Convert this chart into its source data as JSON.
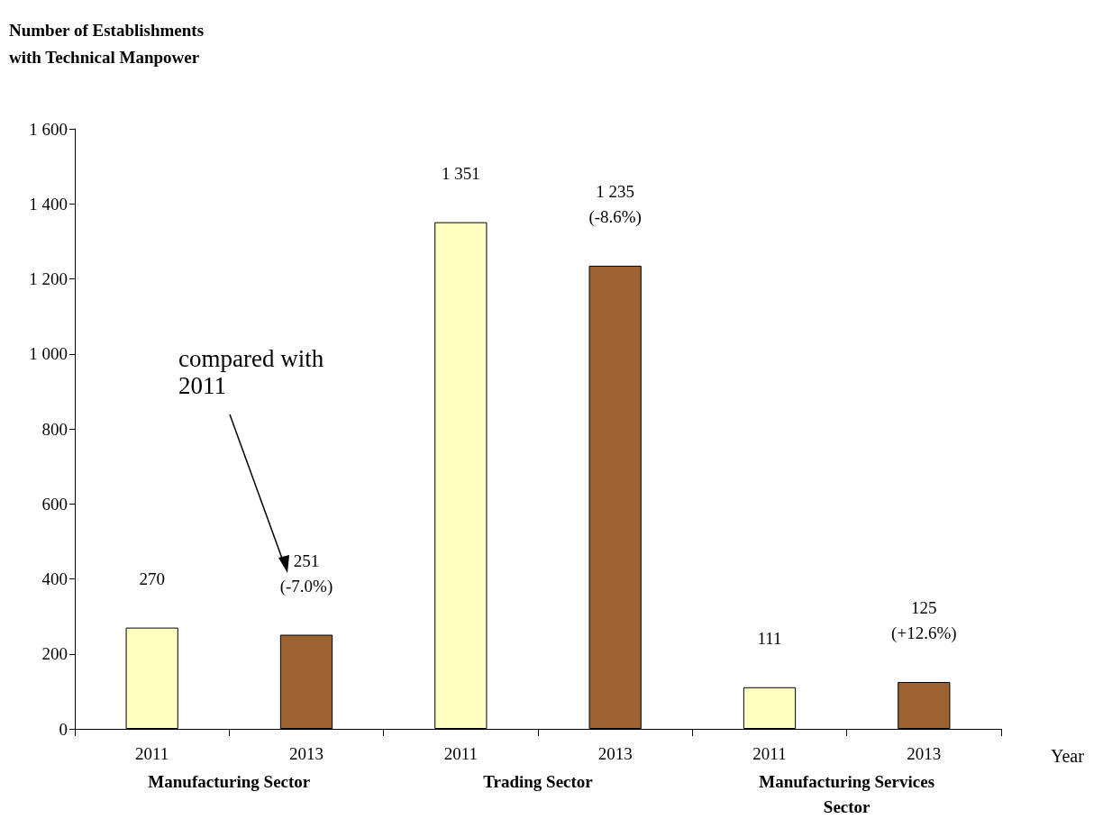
{
  "chart_data": {
    "type": "bar",
    "ylabel": "Number of Establishments\nwith Technical Manpower",
    "xlabel": "Year",
    "categories": [
      "2011",
      "2013",
      "2011",
      "2013",
      "2011",
      "2013"
    ],
    "values": [
      270,
      251,
      1351,
      1235,
      111,
      125
    ],
    "colors": [
      "#ffffc0",
      "#9c6231",
      "#ffffc0",
      "#9c6231",
      "#ffffc0",
      "#9c6231"
    ],
    "value_labels": [
      "270",
      "251\n(-7.0%)",
      "1 351",
      "1 235\n(-8.6%)",
      "111",
      "125\n(+12.6%)"
    ],
    "ylim": [
      0,
      1600
    ],
    "yticks": [
      0,
      200,
      400,
      600,
      800,
      {
        "value": 1000,
        "label": "1 000"
      },
      {
        "value": 1200,
        "label": "1 200"
      },
      {
        "value": 1400,
        "label": "1 400"
      },
      {
        "value": 1600,
        "label": "1 600"
      }
    ],
    "annotations": [
      "Manufacturing Sector",
      "Trading Sector",
      "Manufacturing Services\nSector",
      "compared with\n2011"
    ],
    "grid": false
  }
}
